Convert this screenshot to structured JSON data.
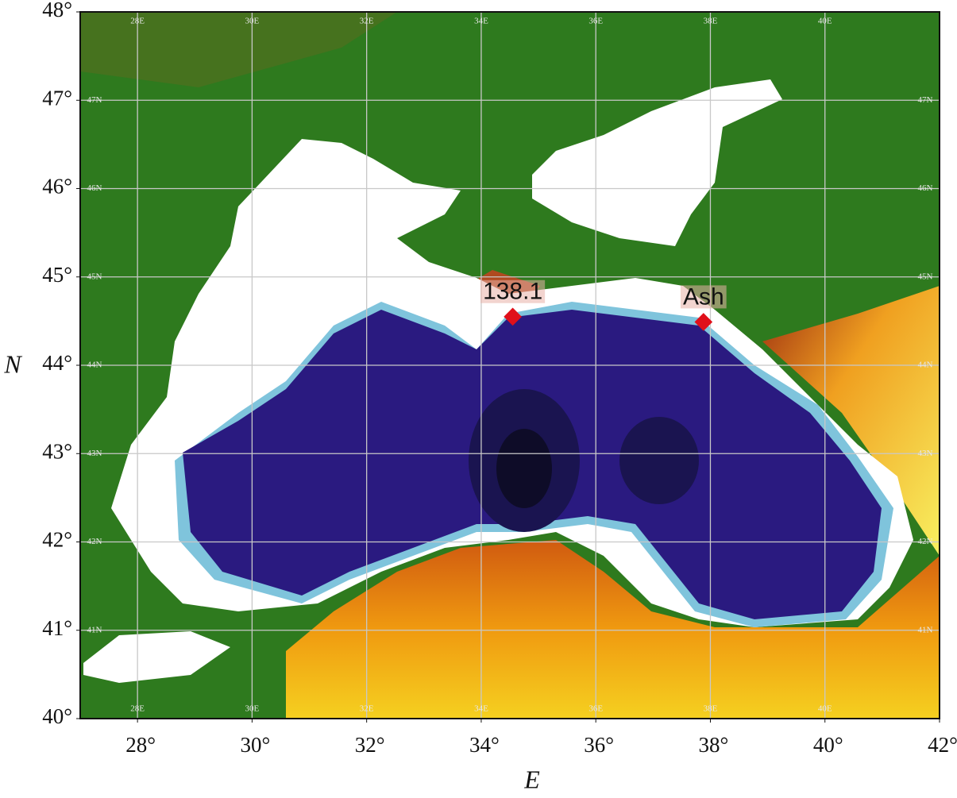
{
  "map": {
    "xlabel": "E",
    "ylabel": "N",
    "xlim": [
      27,
      42
    ],
    "ylim": [
      40,
      48
    ],
    "xticks": [
      {
        "value": 28,
        "label": "28°"
      },
      {
        "value": 30,
        "label": "30°"
      },
      {
        "value": 32,
        "label": "32°"
      },
      {
        "value": 34,
        "label": "34°"
      },
      {
        "value": 36,
        "label": "36°"
      },
      {
        "value": 38,
        "label": "38°"
      },
      {
        "value": 40,
        "label": "40°"
      },
      {
        "value": 42,
        "label": "42°"
      }
    ],
    "yticks": [
      {
        "value": 40,
        "label": "40°"
      },
      {
        "value": 41,
        "label": "41°"
      },
      {
        "value": 42,
        "label": "42°"
      },
      {
        "value": 43,
        "label": "43°"
      },
      {
        "value": 44,
        "label": "44°"
      },
      {
        "value": 45,
        "label": "45°"
      },
      {
        "value": 46,
        "label": "46°"
      },
      {
        "value": 47,
        "label": "47°"
      },
      {
        "value": 48,
        "label": "48°"
      }
    ],
    "lon_grid": [
      {
        "value": 28,
        "label": "28E"
      },
      {
        "value": 30,
        "label": "30E"
      },
      {
        "value": 32,
        "label": "32E"
      },
      {
        "value": 34,
        "label": "34E"
      },
      {
        "value": 36,
        "label": "36E"
      },
      {
        "value": 38,
        "label": "38E"
      },
      {
        "value": 40,
        "label": "40E"
      }
    ],
    "lat_grid": [
      {
        "value": 41,
        "label": "41N"
      },
      {
        "value": 42,
        "label": "42N"
      },
      {
        "value": 43,
        "label": "43N"
      },
      {
        "value": 44,
        "label": "44N"
      },
      {
        "value": 45,
        "label": "45N"
      },
      {
        "value": 46,
        "label": "46N"
      },
      {
        "value": 47,
        "label": "47N"
      }
    ],
    "markers": [
      {
        "label": "138.1",
        "lon": 34.55,
        "lat": 44.55,
        "color": "#e0101a"
      },
      {
        "label": "Ash",
        "lon": 37.88,
        "lat": 44.49,
        "color": "#e0101a"
      }
    ]
  }
}
